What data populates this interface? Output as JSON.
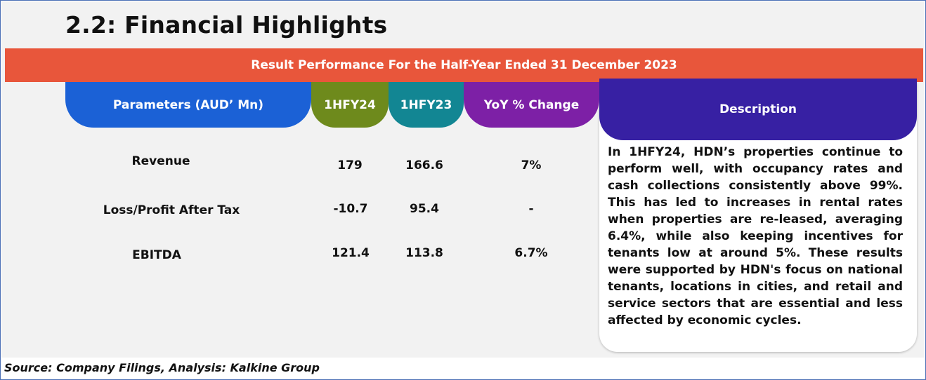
{
  "title": "2.2: Financial Highlights",
  "banner": "Result Performance For the Half-Year Ended 31 December 2023",
  "headers": {
    "parameters": "Parameters (AUD’ Mn)",
    "fy24": "1HFY24",
    "fy23": "1HFY23",
    "yoy": "YoY % Change",
    "description": "Description"
  },
  "rows": [
    {
      "label": "Revenue",
      "fy24": "179",
      "fy23": "166.6",
      "yoy": "7%"
    },
    {
      "label": "Loss/Profit After Tax",
      "fy24": "-10.7",
      "fy23": "95.4",
      "yoy": "-"
    },
    {
      "label": "EBITDA",
      "fy24": "121.4",
      "fy23": "113.8",
      "yoy": "6.7%"
    }
  ],
  "description": "In 1HFY24, HDN’s properties continue to perform well, with occupancy rates and cash collections consistently above 99%. This has led to increases in rental rates when properties are re-leased, averaging 6.4%, while also keeping incentives for tenants low at around 5%. These results were supported by HDN's focus on national tenants, locations in cities, and retail and service sectors that are essential and less affected by economic cycles.",
  "source": "Source: Company Filings, Analysis: Kalkine Group",
  "colors": {
    "banner": "#e8563b",
    "parameters_header": "#1b61d6",
    "fy24_header": "#6e8a1c",
    "fy23_header": "#128693",
    "yoy_header": "#7d20a6",
    "description_header": "#3720a3"
  }
}
